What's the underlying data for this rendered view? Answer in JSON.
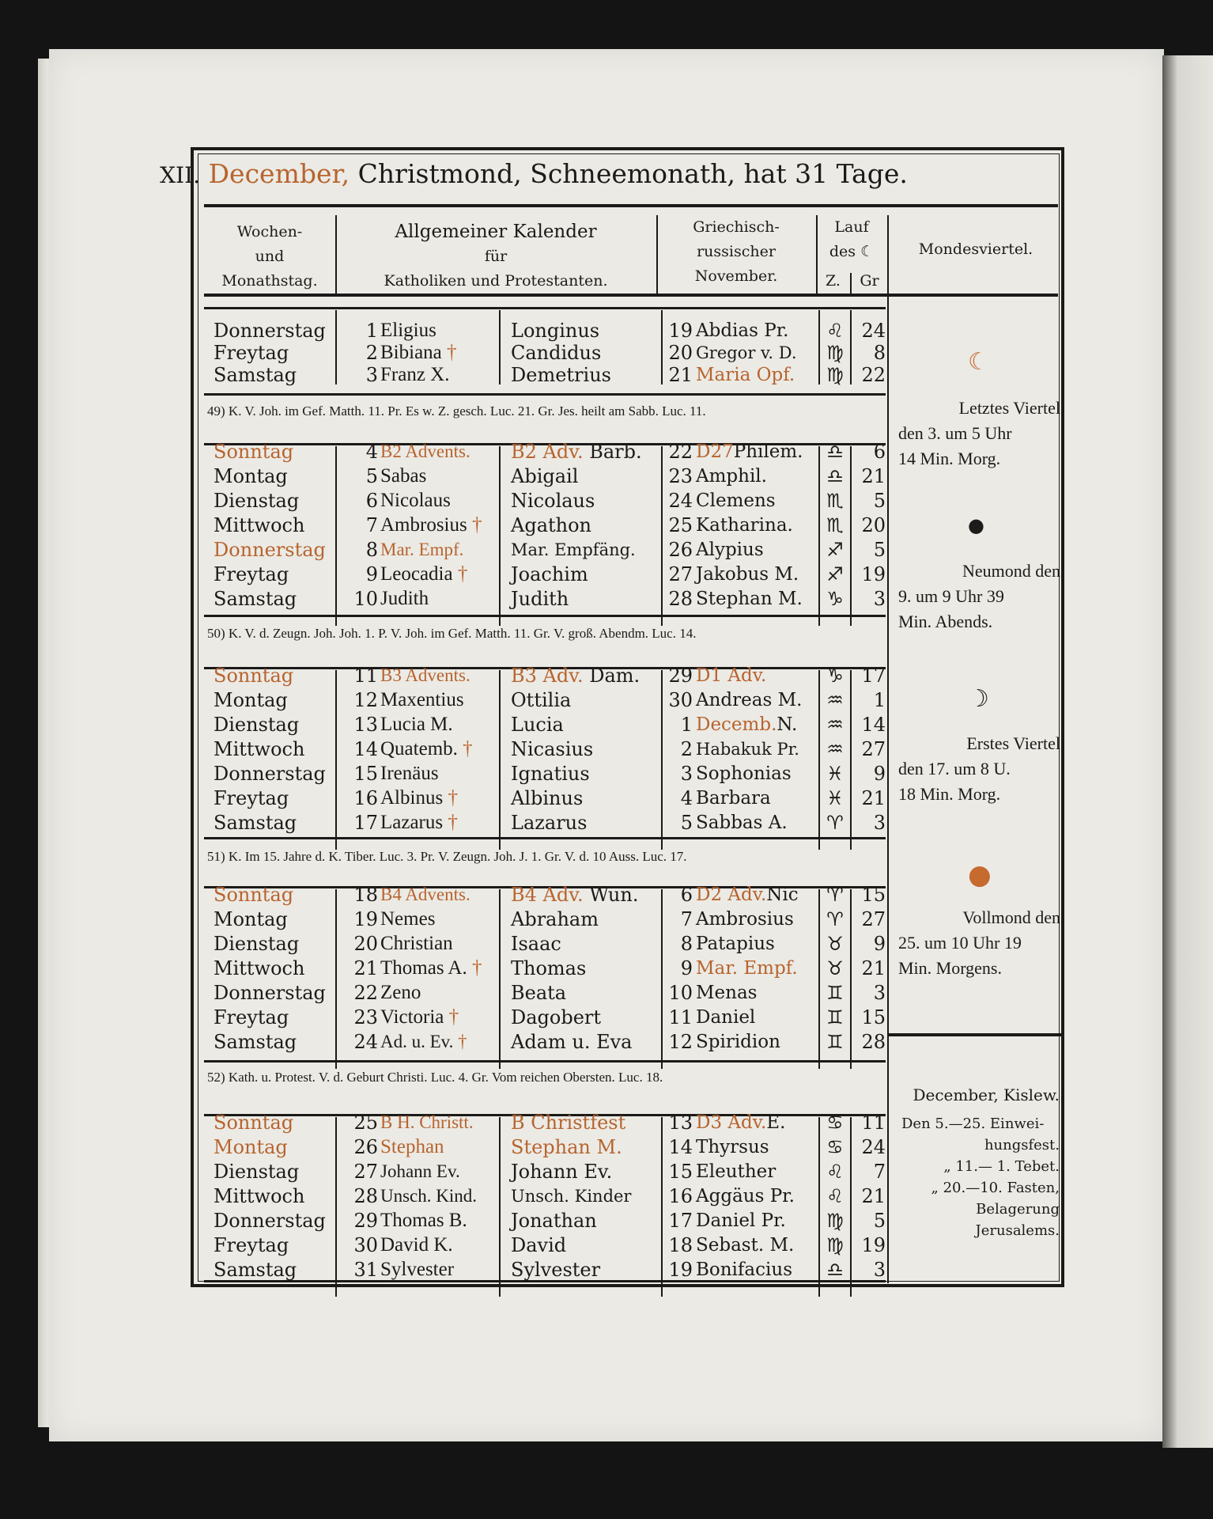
{
  "title": {
    "numeral": "XII.",
    "month": "December,",
    "rest": "Christmond, Schneemonath, hat 31 Tage."
  },
  "headers": {
    "weekday": [
      "Wochen-",
      "und",
      "Monathstag."
    ],
    "general": [
      "Allgemeiner Kalender",
      "für",
      "Katholiken und Protestanten."
    ],
    "greek": [
      "Griechisch-",
      "russischer",
      "November."
    ],
    "moon_course": [
      "Lauf",
      "des ☾",
      "Z.",
      "Gr"
    ],
    "quarters": "Mondesviertel."
  },
  "colors": {
    "rubric": "#b8642e",
    "ink": "#1c1b19",
    "paper": "#ebeae5"
  },
  "weeks": [
    {
      "gospel": "",
      "rows": [
        {
          "weekday": "Donnerstag",
          "wd_red": false,
          "day": "1",
          "cath": "Eligius",
          "cath_red": false,
          "cross": false,
          "prot_red": "",
          "prot": "Longinus",
          "g_day": "19",
          "g_red": "",
          "g_saint": "Abdias Pr.",
          "zodiac": "♌",
          "zodiac_name": "leo-icon",
          "deg": "24"
        },
        {
          "weekday": "Freytag",
          "wd_red": false,
          "day": "2",
          "cath": "Bibiana",
          "cath_red": false,
          "cross": true,
          "prot_red": "",
          "prot": "Candidus",
          "g_day": "20",
          "g_red": "",
          "g_saint": "Gregor v. D.",
          "zodiac": "♍",
          "zodiac_name": "virgo-icon",
          "deg": "8"
        },
        {
          "weekday": "Samstag",
          "wd_red": false,
          "day": "3",
          "cath": "Franz X.",
          "cath_red": false,
          "cross": false,
          "prot_red": "",
          "prot": "Demetrius",
          "g_day": "21",
          "g_red": "Maria Opf.",
          "g_saint": "",
          "zodiac": "♍",
          "zodiac_name": "virgo-icon",
          "deg": "22"
        }
      ]
    },
    {
      "gospel": "49) K. V. Joh. im Gef. Matth. 11. Pr. Es w. Z. gesch. Luc. 21. Gr. Jes. heilt am Sabb. Luc. 11.",
      "rows": [
        {
          "weekday": "Sonntag",
          "wd_red": true,
          "day": "4",
          "cath": "B2 Advents.",
          "cath_red": true,
          "cross": false,
          "prot_red": "B2 Adv.",
          "prot": "Barb.",
          "g_day": "22",
          "g_red": "D27",
          "g_saint": "Philem.",
          "zodiac": "♎",
          "zodiac_name": "libra-icon",
          "deg": "6"
        },
        {
          "weekday": "Montag",
          "wd_red": false,
          "day": "5",
          "cath": "Sabas",
          "cath_red": false,
          "cross": false,
          "prot_red": "",
          "prot": "Abigail",
          "g_day": "23",
          "g_red": "",
          "g_saint": "Amphil.",
          "zodiac": "♎",
          "zodiac_name": "libra-icon",
          "deg": "21"
        },
        {
          "weekday": "Dienstag",
          "wd_red": false,
          "day": "6",
          "cath": "Nicolaus",
          "cath_red": false,
          "cross": false,
          "prot_red": "",
          "prot": "Nicolaus",
          "g_day": "24",
          "g_red": "",
          "g_saint": "Clemens",
          "zodiac": "♏",
          "zodiac_name": "scorpio-icon",
          "deg": "5"
        },
        {
          "weekday": "Mittwoch",
          "wd_red": false,
          "day": "7",
          "cath": "Ambrosius",
          "cath_red": false,
          "cross": true,
          "prot_red": "",
          "prot": "Agathon",
          "g_day": "25",
          "g_red": "",
          "g_saint": "Katharina.",
          "zodiac": "♏",
          "zodiac_name": "scorpio-icon",
          "deg": "20"
        },
        {
          "weekday": "Donnerstag",
          "wd_red": true,
          "day": "8",
          "cath": "Mar. Empf.",
          "cath_red": true,
          "cross": false,
          "prot_red": "",
          "prot": "Mar. Empfäng.",
          "g_day": "26",
          "g_red": "",
          "g_saint": "Alypius",
          "zodiac": "♐",
          "zodiac_name": "sagittarius-icon",
          "deg": "5"
        },
        {
          "weekday": "Freytag",
          "wd_red": false,
          "day": "9",
          "cath": "Leocadia",
          "cath_red": false,
          "cross": true,
          "prot_red": "",
          "prot": "Joachim",
          "g_day": "27",
          "g_red": "",
          "g_saint": "Jakobus M.",
          "zodiac": "♐",
          "zodiac_name": "sagittarius-icon",
          "deg": "19"
        },
        {
          "weekday": "Samstag",
          "wd_red": false,
          "day": "10",
          "cath": "Judith",
          "cath_red": false,
          "cross": false,
          "prot_red": "",
          "prot": "Judith",
          "g_day": "28",
          "g_red": "",
          "g_saint": "Stephan M.",
          "zodiac": "♑",
          "zodiac_name": "capricorn-icon",
          "deg": "3"
        }
      ]
    },
    {
      "gospel": "50) K. V. d. Zeugn. Joh. Joh. 1. P. V. Joh. im Gef. Matth. 11. Gr. V. groß. Abendm. Luc. 14.",
      "rows": [
        {
          "weekday": "Sonntag",
          "wd_red": true,
          "day": "11",
          "cath": "B3 Advents.",
          "cath_red": true,
          "cross": false,
          "prot_red": "B3 Adv.",
          "prot": "Dam.",
          "g_day": "29",
          "g_red": "D1 Adv.",
          "g_saint": "",
          "zodiac": "♑",
          "zodiac_name": "capricorn-icon",
          "deg": "17"
        },
        {
          "weekday": "Montag",
          "wd_red": false,
          "day": "12",
          "cath": "Maxentius",
          "cath_red": false,
          "cross": false,
          "prot_red": "",
          "prot": "Ottilia",
          "g_day": "30",
          "g_red": "",
          "g_saint": "Andreas M.",
          "zodiac": "♒",
          "zodiac_name": "aquarius-icon",
          "deg": "1"
        },
        {
          "weekday": "Dienstag",
          "wd_red": false,
          "day": "13",
          "cath": "Lucia M.",
          "cath_red": false,
          "cross": false,
          "prot_red": "",
          "prot": "Lucia",
          "g_day": "1",
          "g_red": "Decemb.",
          "g_saint": "N.",
          "zodiac": "♒",
          "zodiac_name": "aquarius-icon",
          "deg": "14"
        },
        {
          "weekday": "Mittwoch",
          "wd_red": false,
          "day": "14",
          "cath": "Quatemb.",
          "cath_red": false,
          "cross": true,
          "prot_red": "",
          "prot": "Nicasius",
          "g_day": "2",
          "g_red": "",
          "g_saint": "Habakuk Pr.",
          "zodiac": "♒",
          "zodiac_name": "aquarius-icon",
          "deg": "27"
        },
        {
          "weekday": "Donnerstag",
          "wd_red": false,
          "day": "15",
          "cath": "Irenäus",
          "cath_red": false,
          "cross": false,
          "prot_red": "",
          "prot": "Ignatius",
          "g_day": "3",
          "g_red": "",
          "g_saint": "Sophonias",
          "zodiac": "♓",
          "zodiac_name": "pisces-icon",
          "deg": "9"
        },
        {
          "weekday": "Freytag",
          "wd_red": false,
          "day": "16",
          "cath": "Albinus",
          "cath_red": false,
          "cross": true,
          "prot_red": "",
          "prot": "Albinus",
          "g_day": "4",
          "g_red": "",
          "g_saint": "Barbara",
          "zodiac": "♓",
          "zodiac_name": "pisces-icon",
          "deg": "21"
        },
        {
          "weekday": "Samstag",
          "wd_red": false,
          "day": "17",
          "cath": "Lazarus",
          "cath_red": false,
          "cross": true,
          "prot_red": "",
          "prot": "Lazarus",
          "g_day": "5",
          "g_red": "",
          "g_saint": "Sabbas A.",
          "zodiac": "♈",
          "zodiac_name": "aries-icon",
          "deg": "3"
        }
      ]
    },
    {
      "gospel": "51) K. Im 15. Jahre d. K. Tiber. Luc. 3. Pr. V. Zeugn. Joh. J. 1. Gr. V. d. 10 Auss. Luc. 17.",
      "rows": [
        {
          "weekday": "Sonntag",
          "wd_red": true,
          "day": "18",
          "cath": "B4 Advents.",
          "cath_red": true,
          "cross": false,
          "prot_red": "B4 Adv.",
          "prot": "Wun.",
          "g_day": "6",
          "g_red": "D2 Adv.",
          "g_saint": "Nic",
          "zodiac": "♈",
          "zodiac_name": "aries-icon",
          "deg": "15"
        },
        {
          "weekday": "Montag",
          "wd_red": false,
          "day": "19",
          "cath": "Nemes",
          "cath_red": false,
          "cross": false,
          "prot_red": "",
          "prot": "Abraham",
          "g_day": "7",
          "g_red": "",
          "g_saint": "Ambrosius",
          "zodiac": "♈",
          "zodiac_name": "aries-icon",
          "deg": "27"
        },
        {
          "weekday": "Dienstag",
          "wd_red": false,
          "day": "20",
          "cath": "Christian",
          "cath_red": false,
          "cross": false,
          "prot_red": "",
          "prot": "Isaac",
          "g_day": "8",
          "g_red": "",
          "g_saint": "Patapius",
          "zodiac": "♉",
          "zodiac_name": "taurus-icon",
          "deg": "9"
        },
        {
          "weekday": "Mittwoch",
          "wd_red": false,
          "day": "21",
          "cath": "Thomas A.",
          "cath_red": false,
          "cross": true,
          "prot_red": "",
          "prot": "Thomas",
          "g_day": "9",
          "g_red": "Mar. Empf.",
          "g_saint": "",
          "zodiac": "♉",
          "zodiac_name": "taurus-icon",
          "deg": "21"
        },
        {
          "weekday": "Donnerstag",
          "wd_red": false,
          "day": "22",
          "cath": "Zeno",
          "cath_red": false,
          "cross": false,
          "prot_red": "",
          "prot": "Beata",
          "g_day": "10",
          "g_red": "",
          "g_saint": "Menas",
          "zodiac": "♊",
          "zodiac_name": "gemini-icon",
          "deg": "3"
        },
        {
          "weekday": "Freytag",
          "wd_red": false,
          "day": "23",
          "cath": "Victoria",
          "cath_red": false,
          "cross": true,
          "prot_red": "",
          "prot": "Dagobert",
          "g_day": "11",
          "g_red": "",
          "g_saint": "Daniel",
          "zodiac": "♊",
          "zodiac_name": "gemini-icon",
          "deg": "15"
        },
        {
          "weekday": "Samstag",
          "wd_red": false,
          "day": "24",
          "cath": "Ad. u. Ev.",
          "cath_red": false,
          "cross": true,
          "prot_red": "",
          "prot": "Adam u. Eva",
          "g_day": "12",
          "g_red": "",
          "g_saint": "Spiridion",
          "zodiac": "♊",
          "zodiac_name": "gemini-icon",
          "deg": "28"
        }
      ]
    },
    {
      "gospel": "52) Kath. u. Protest. V. d. Geburt Christi. Luc. 4. Gr. Vom reichen Obersten. Luc. 18.",
      "rows": [
        {
          "weekday": "Sonntag",
          "wd_red": true,
          "day": "25",
          "cath": "B H. Christt.",
          "cath_red": true,
          "cross": false,
          "prot_red": "B Christfest",
          "prot": "",
          "g_day": "13",
          "g_red": "D3 Adv.",
          "g_saint": "E.",
          "zodiac": "♋",
          "zodiac_name": "cancer-icon",
          "deg": "11"
        },
        {
          "weekday": "Montag",
          "wd_red": true,
          "day": "26",
          "cath": "Stephan",
          "cath_red": true,
          "cross": false,
          "prot_red": "Stephan M.",
          "prot": "",
          "g_day": "14",
          "g_red": "",
          "g_saint": "Thyrsus",
          "zodiac": "♋",
          "zodiac_name": "cancer-icon",
          "deg": "24"
        },
        {
          "weekday": "Dienstag",
          "wd_red": false,
          "day": "27",
          "cath": "Johann Ev.",
          "cath_red": false,
          "cross": false,
          "prot_red": "",
          "prot": "Johann Ev.",
          "g_day": "15",
          "g_red": "",
          "g_saint": "Eleuther",
          "zodiac": "♌",
          "zodiac_name": "leo-icon",
          "deg": "7"
        },
        {
          "weekday": "Mittwoch",
          "wd_red": false,
          "day": "28",
          "cath": "Unsch. Kind.",
          "cath_red": false,
          "cross": false,
          "prot_red": "",
          "prot": "Unsch. Kinder",
          "g_day": "16",
          "g_red": "",
          "g_saint": "Aggäus Pr.",
          "zodiac": "♌",
          "zodiac_name": "leo-icon",
          "deg": "21"
        },
        {
          "weekday": "Donnerstag",
          "wd_red": false,
          "day": "29",
          "cath": "Thomas B.",
          "cath_red": false,
          "cross": false,
          "prot_red": "",
          "prot": "Jonathan",
          "g_day": "17",
          "g_red": "",
          "g_saint": "Daniel Pr.",
          "zodiac": "♍",
          "zodiac_name": "virgo-icon",
          "deg": "5"
        },
        {
          "weekday": "Freytag",
          "wd_red": false,
          "day": "30",
          "cath": "David K.",
          "cath_red": false,
          "cross": false,
          "prot_red": "",
          "prot": "David",
          "g_day": "18",
          "g_red": "",
          "g_saint": "Sebast. M.",
          "zodiac": "♍",
          "zodiac_name": "virgo-icon",
          "deg": "19"
        },
        {
          "weekday": "Samstag",
          "wd_red": false,
          "day": "31",
          "cath": "Sylvester",
          "cath_red": false,
          "cross": false,
          "prot_red": "",
          "prot": "Sylvester",
          "g_day": "19",
          "g_red": "",
          "g_saint": "Bonifacius",
          "zodiac": "♎",
          "zodiac_name": "libra-icon",
          "deg": "3"
        }
      ]
    }
  ],
  "cross_symbol": "†",
  "moon_phases": [
    {
      "symbol": "☾",
      "red": true,
      "name": "last-quarter-icon",
      "lines": [
        "Letztes Viertel",
        "den 3. um 5 Uhr",
        "14 Min. Morg."
      ]
    },
    {
      "symbol": "●",
      "red": false,
      "name": "new-moon-icon",
      "lines": [
        "Neumond den",
        "9. um 9 Uhr 39",
        "Min. Abends."
      ]
    },
    {
      "symbol": "☽",
      "red": false,
      "name": "first-quarter-icon",
      "lines": [
        "Erstes Viertel",
        "den 17. um 8 U.",
        "18 Min. Morg."
      ]
    },
    {
      "symbol": "●",
      "red": true,
      "name": "full-moon-icon",
      "lines": [
        "Vollmond den",
        "25. um 10 Uhr 19",
        "Min. Morgens."
      ]
    }
  ],
  "jewish": {
    "title": "December, Kislew.",
    "lines": [
      "Den 5.—25. Einwei-",
      "hungsfest.",
      "„ 11.— 1. Tebet.",
      "„ 20.—10. Fasten,",
      "Belagerung",
      "Jerusalems."
    ]
  }
}
